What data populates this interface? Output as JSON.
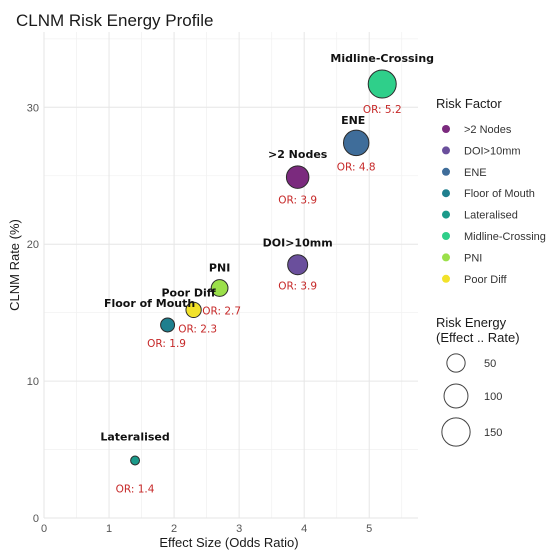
{
  "chart_data": {
    "type": "scatter",
    "title": "CLNM Risk Energy Profile",
    "xlabel": "Effect Size (Odds Ratio)",
    "ylabel": "CLNM Rate (%)",
    "xlim": [
      0,
      5.75
    ],
    "ylim": [
      0,
      35.5
    ],
    "x_ticks": [
      0,
      1,
      2,
      3,
      4,
      5
    ],
    "y_ticks": [
      0,
      10,
      20,
      30
    ],
    "grid": true,
    "points": [
      {
        "factor": ">2 Nodes",
        "x": 3.9,
        "y": 24.9,
        "energy": 97,
        "label": ">2 Nodes",
        "or_label": "OR: 3.9",
        "color": "#7b2a7e"
      },
      {
        "factor": "DOI>10mm",
        "x": 3.9,
        "y": 18.5,
        "energy": 72,
        "label": "DOI>10mm",
        "or_label": "OR: 3.9",
        "color": "#6a4f9c"
      },
      {
        "factor": "ENE",
        "x": 4.8,
        "y": 27.4,
        "energy": 131,
        "label": "ENE",
        "or_label": "OR: 4.8",
        "color": "#3f6d9a"
      },
      {
        "factor": "Floor of Mouth",
        "x": 1.9,
        "y": 14.1,
        "energy": 27,
        "label": "Floor of Mouth",
        "or_label": "OR: 1.9",
        "color": "#1f7f8e"
      },
      {
        "factor": "Lateralised",
        "x": 1.4,
        "y": 4.2,
        "energy": 6,
        "label": "Lateralised",
        "or_label": "OR: 1.4",
        "color": "#1b9a8a"
      },
      {
        "factor": "Midline-Crossing",
        "x": 5.2,
        "y": 31.7,
        "energy": 165,
        "label": "Midline-Crossing",
        "or_label": "OR: 5.2",
        "color": "#2fcf8a"
      },
      {
        "factor": "PNI",
        "x": 2.7,
        "y": 16.8,
        "energy": 45,
        "label": "PNI",
        "or_label": "OR: 2.7",
        "color": "#9be04a"
      },
      {
        "factor": "Poor Diff",
        "x": 2.3,
        "y": 15.2,
        "energy": 35,
        "label": "Poor Diff",
        "or_label": "OR: 2.3",
        "color": "#f2e22a"
      }
    ],
    "legend_color": {
      "title": "Risk Factor",
      "placement": "right",
      "entries": [
        {
          "label": ">2 Nodes",
          "color": "#7b2a7e"
        },
        {
          "label": "DOI>10mm",
          "color": "#6a4f9c"
        },
        {
          "label": "ENE",
          "color": "#3f6d9a"
        },
        {
          "label": "Floor of Mouth",
          "color": "#1f7f8e"
        },
        {
          "label": "Lateralised",
          "color": "#1b9a8a"
        },
        {
          "label": "Midline-Crossing",
          "color": "#2fcf8a"
        },
        {
          "label": "PNI",
          "color": "#9be04a"
        },
        {
          "label": "Poor Diff",
          "color": "#f2e22a"
        }
      ]
    },
    "legend_size": {
      "title_line1": "Risk Energy",
      "title_line2": "(Effect .. Rate)",
      "placement": "right",
      "entries": [
        {
          "label": "50",
          "energy": 50
        },
        {
          "label": "100",
          "energy": 100
        },
        {
          "label": "150",
          "energy": 150
        }
      ]
    }
  }
}
